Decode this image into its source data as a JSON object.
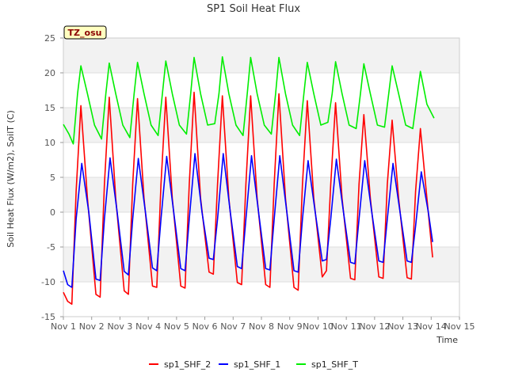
{
  "chart_data": {
    "type": "line",
    "title": "SP1 Soil Heat Flux",
    "xlabel": "Time",
    "ylabel": "Soil Heat Flux (W/m2), SoilT (C)",
    "badge": "TZ_osu",
    "xlim": [
      1,
      15
    ],
    "ylim": [
      -15,
      25
    ],
    "x_ticks": [
      1,
      2,
      3,
      4,
      5,
      6,
      7,
      8,
      9,
      10,
      11,
      12,
      13,
      14,
      15
    ],
    "x_tick_labels": [
      "Nov 1",
      "Nov 2",
      "Nov 3",
      "Nov 4",
      "Nov 5",
      "Nov 6",
      "Nov 7",
      "Nov 8",
      "Nov 9",
      "Nov 10",
      "Nov 11",
      "Nov 12",
      "Nov 13",
      "Nov 14",
      "Nov 15"
    ],
    "y_ticks": [
      -15,
      -10,
      -5,
      0,
      5,
      10,
      15,
      20,
      25
    ],
    "y_tick_labels": [
      "-15",
      "-10",
      "-5",
      "0",
      "5",
      "10",
      "15",
      "20",
      "25"
    ],
    "grid": true,
    "legend_position": "bottom",
    "series": [
      {
        "name": "sp1_SHF_2",
        "color": "#ff0000",
        "x": [
          1.0,
          1.15,
          1.3,
          1.45,
          1.62,
          1.85,
          2.15,
          2.3,
          2.45,
          2.62,
          2.85,
          3.15,
          3.3,
          3.45,
          3.62,
          3.85,
          4.15,
          4.3,
          4.45,
          4.62,
          4.85,
          5.15,
          5.3,
          5.45,
          5.62,
          5.85,
          6.15,
          6.3,
          6.45,
          6.62,
          6.85,
          7.15,
          7.3,
          7.45,
          7.62,
          7.85,
          8.15,
          8.3,
          8.45,
          8.62,
          8.85,
          9.15,
          9.3,
          9.45,
          9.62,
          9.85,
          10.15,
          10.3,
          10.45,
          10.62,
          10.85,
          11.15,
          11.3,
          11.45,
          11.62,
          11.85,
          12.15,
          12.3,
          12.45,
          12.62,
          12.85,
          13.15,
          13.3,
          13.45,
          13.62,
          13.85,
          14.05
        ],
        "y": [
          -11.5,
          -12.8,
          -13.2,
          3.0,
          15.3,
          2.0,
          -11.8,
          -12.2,
          4.0,
          16.5,
          2.0,
          -11.3,
          -11.8,
          4.0,
          16.3,
          2.0,
          -10.6,
          -10.8,
          4.0,
          16.5,
          2.0,
          -10.6,
          -10.9,
          4.0,
          17.2,
          2.0,
          -8.6,
          -8.9,
          4.0,
          16.7,
          2.0,
          -10.1,
          -10.4,
          4.0,
          16.7,
          2.0,
          -10.4,
          -10.8,
          4.0,
          17.0,
          2.0,
          -10.8,
          -11.2,
          4.0,
          16.0,
          2.0,
          -9.3,
          -8.4,
          4.0,
          15.7,
          2.0,
          -9.5,
          -9.7,
          4.0,
          14.0,
          2.0,
          -9.3,
          -9.5,
          4.0,
          13.2,
          2.0,
          -9.4,
          -9.6,
          3.0,
          12.0,
          2.0,
          -6.5
        ]
      },
      {
        "name": "sp1_SHF_1",
        "color": "#0000ff",
        "x": [
          1.0,
          1.15,
          1.3,
          1.45,
          1.65,
          1.9,
          2.15,
          2.3,
          2.45,
          2.65,
          2.9,
          3.15,
          3.3,
          3.45,
          3.65,
          3.9,
          4.15,
          4.3,
          4.45,
          4.65,
          4.9,
          5.15,
          5.3,
          5.45,
          5.65,
          5.9,
          6.15,
          6.3,
          6.45,
          6.65,
          6.9,
          7.15,
          7.3,
          7.45,
          7.65,
          7.9,
          8.15,
          8.3,
          8.45,
          8.65,
          8.9,
          9.15,
          9.3,
          9.45,
          9.65,
          9.9,
          10.15,
          10.3,
          10.45,
          10.65,
          10.9,
          11.15,
          11.3,
          11.45,
          11.65,
          11.9,
          12.15,
          12.3,
          12.45,
          12.65,
          12.9,
          13.15,
          13.3,
          13.45,
          13.65,
          13.9,
          14.05
        ],
        "y": [
          -8.4,
          -10.4,
          -10.8,
          -1.0,
          7.0,
          0.0,
          -9.6,
          -9.8,
          -1.0,
          7.8,
          0.0,
          -8.5,
          -9.0,
          -1.0,
          7.7,
          0.0,
          -8.0,
          -8.4,
          -1.0,
          8.0,
          0.0,
          -8.1,
          -8.4,
          -1.0,
          8.4,
          0.0,
          -6.6,
          -6.8,
          -1.0,
          8.4,
          0.0,
          -7.8,
          -8.1,
          -1.0,
          8.1,
          0.0,
          -8.1,
          -8.3,
          -1.0,
          8.1,
          0.0,
          -8.4,
          -8.6,
          -1.0,
          7.4,
          0.0,
          -7.0,
          -6.8,
          -1.0,
          7.6,
          0.0,
          -7.2,
          -7.4,
          -1.0,
          7.4,
          0.0,
          -7.0,
          -7.2,
          -1.0,
          7.0,
          0.0,
          -7.0,
          -7.2,
          -2.0,
          5.8,
          0.0,
          -4.3
        ]
      },
      {
        "name": "sp1_SHF_T",
        "color": "#00ee00",
        "x": [
          1.0,
          1.2,
          1.35,
          1.5,
          1.62,
          1.85,
          2.1,
          2.35,
          2.5,
          2.62,
          2.85,
          3.1,
          3.35,
          3.5,
          3.62,
          3.85,
          4.1,
          4.35,
          4.5,
          4.62,
          4.85,
          5.1,
          5.35,
          5.5,
          5.62,
          5.85,
          6.1,
          6.35,
          6.5,
          6.62,
          6.85,
          7.1,
          7.35,
          7.5,
          7.62,
          7.85,
          8.1,
          8.35,
          8.5,
          8.62,
          8.85,
          9.1,
          9.35,
          9.5,
          9.62,
          9.85,
          10.1,
          10.35,
          10.5,
          10.62,
          10.85,
          11.1,
          11.35,
          11.5,
          11.62,
          11.85,
          12.1,
          12.35,
          12.5,
          12.62,
          12.85,
          13.1,
          13.35,
          13.5,
          13.62,
          13.85,
          14.1
        ],
        "y": [
          12.6,
          11.2,
          9.8,
          17.0,
          21.0,
          17.0,
          12.5,
          10.5,
          17.0,
          21.4,
          17.0,
          12.5,
          10.7,
          17.0,
          21.5,
          17.0,
          12.5,
          11.0,
          17.0,
          21.7,
          17.0,
          12.5,
          11.2,
          17.0,
          22.2,
          17.0,
          12.5,
          12.7,
          17.0,
          22.3,
          17.0,
          12.5,
          11.0,
          17.0,
          22.2,
          17.0,
          12.5,
          11.2,
          17.0,
          22.2,
          17.0,
          12.5,
          11.0,
          17.0,
          21.5,
          17.0,
          12.5,
          12.9,
          17.0,
          21.6,
          17.0,
          12.5,
          12.0,
          17.0,
          21.3,
          17.0,
          12.5,
          12.2,
          17.0,
          21.0,
          17.0,
          12.5,
          12.0,
          16.5,
          20.2,
          15.5,
          13.5
        ]
      }
    ]
  }
}
